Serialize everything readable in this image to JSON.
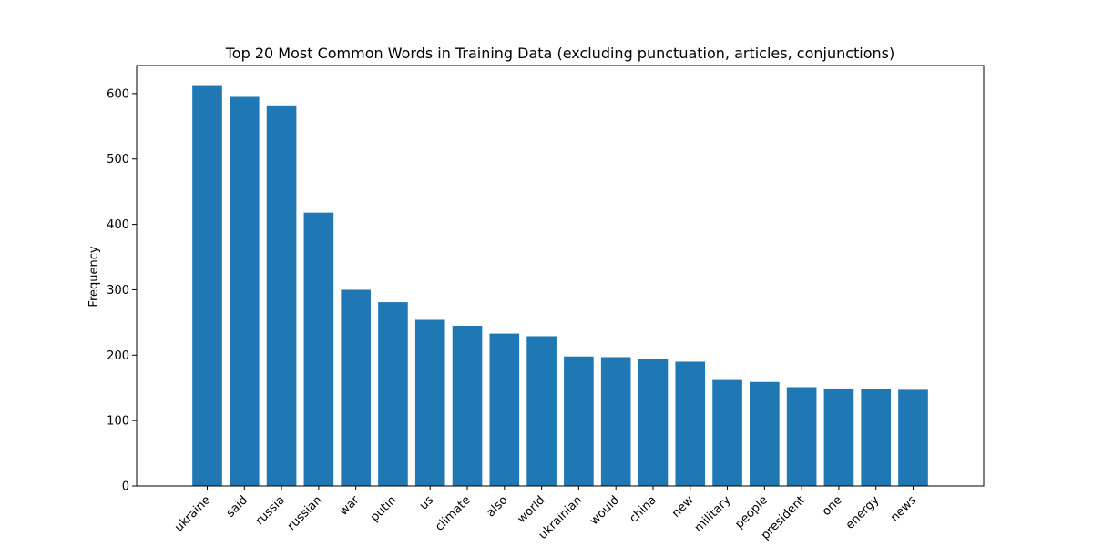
{
  "chart_data": {
    "type": "bar",
    "title": "Top 20 Most Common Words in Training Data (excluding punctuation, articles, conjunctions)",
    "xlabel": "",
    "ylabel": "Frequency",
    "categories": [
      "ukraine",
      "said",
      "russia",
      "russian",
      "war",
      "putin",
      "us",
      "climate",
      "also",
      "world",
      "ukrainian",
      "would",
      "china",
      "new",
      "military",
      "people",
      "president",
      "one",
      "energy",
      "news"
    ],
    "values": [
      613,
      595,
      582,
      418,
      300,
      281,
      254,
      245,
      233,
      229,
      198,
      197,
      194,
      190,
      162,
      159,
      151,
      149,
      148,
      147
    ],
    "yticks": [
      0,
      100,
      200,
      300,
      400,
      500,
      600
    ],
    "ylim": [
      0,
      643
    ],
    "grid": false,
    "bar_color": "#1f77b4"
  }
}
